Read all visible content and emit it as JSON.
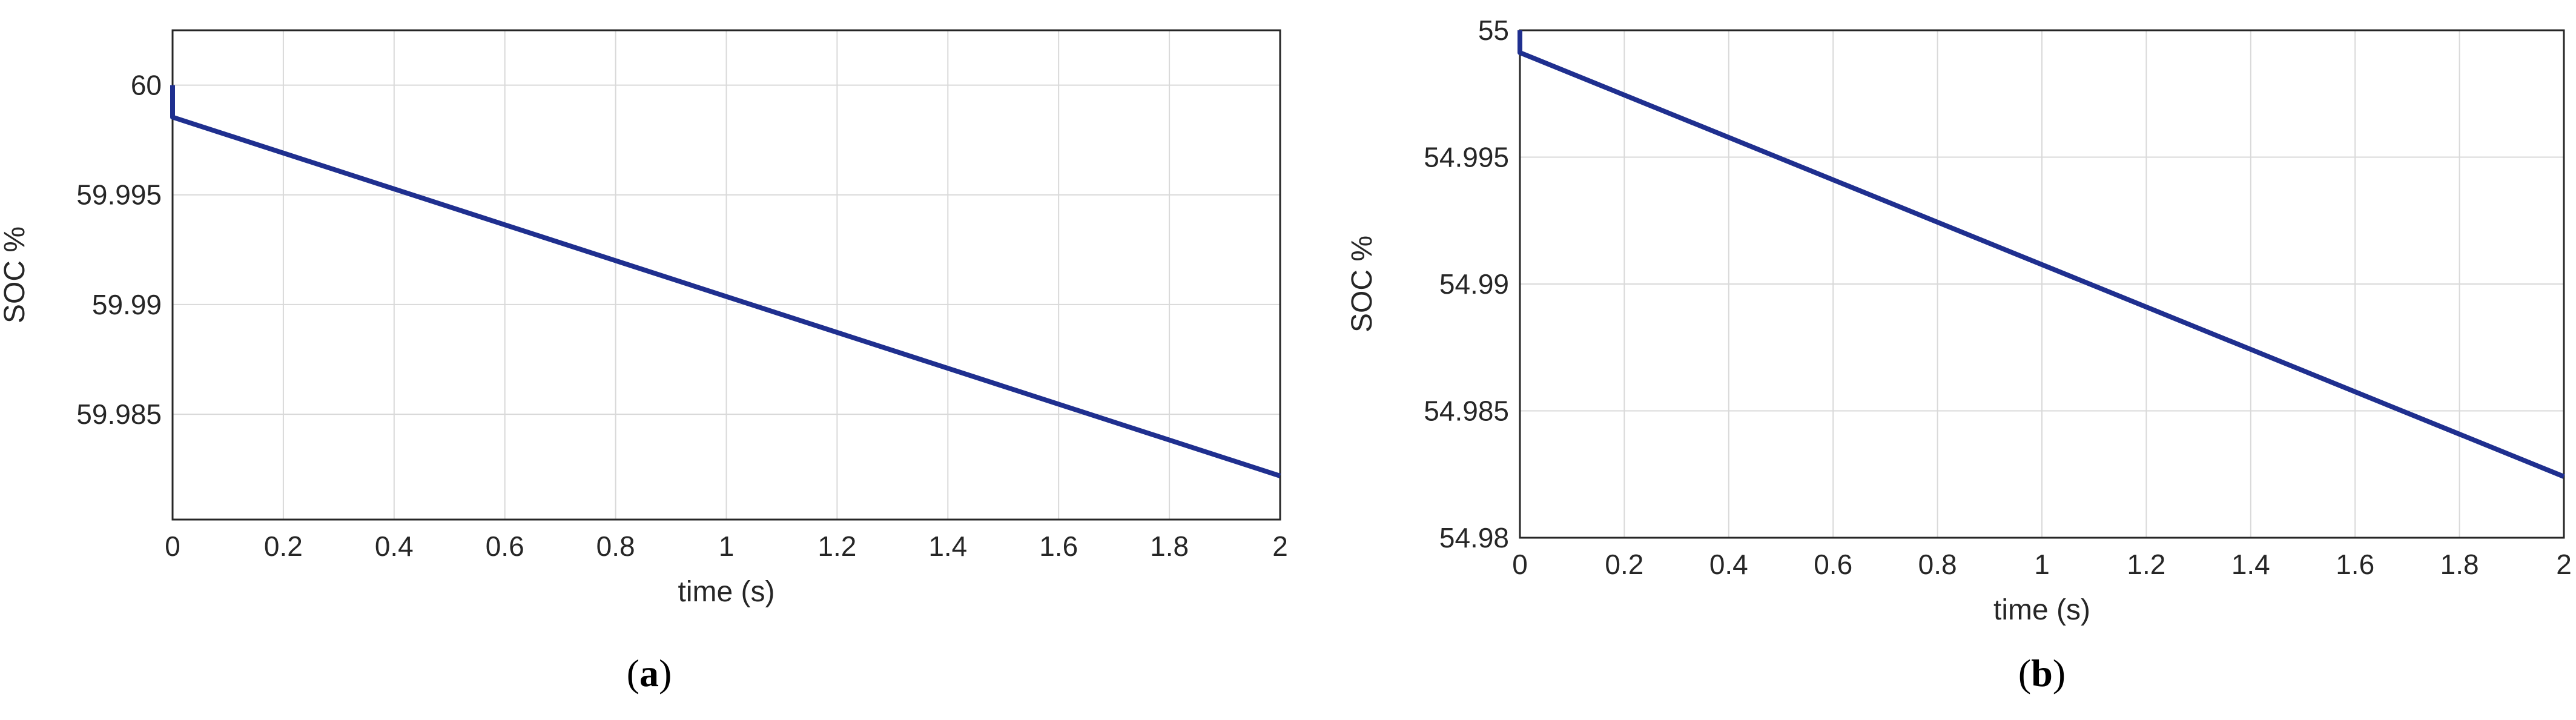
{
  "chart_data": [
    {
      "type": "line",
      "panel_label": "a",
      "title": "",
      "xlabel": "time (s)",
      "ylabel": "SOC %",
      "xlim": [
        0,
        2
      ],
      "ylim": [
        59.9802,
        60.0025
      ],
      "xticks": [
        "0",
        "0.2",
        "0.4",
        "0.6",
        "0.8",
        "1",
        "1.2",
        "1.4",
        "1.6",
        "1.8",
        "2"
      ],
      "yticks": [
        "59.985",
        "59.99",
        "59.995",
        "60"
      ],
      "grid": true,
      "line_color": "#1f2f8f",
      "series": [
        {
          "x": [
            0,
            0,
            2
          ],
          "y": [
            60.0,
            59.99854,
            59.98219
          ]
        }
      ]
    },
    {
      "type": "line",
      "panel_label": "b",
      "title": "",
      "xlabel": "time (s)",
      "ylabel": "SOC %",
      "xlim": [
        0,
        2
      ],
      "ylim": [
        54.98,
        55.0
      ],
      "xticks": [
        "0",
        "0.2",
        "0.4",
        "0.6",
        "0.8",
        "1",
        "1.2",
        "1.4",
        "1.6",
        "1.8",
        "2"
      ],
      "yticks": [
        "54.98",
        "54.985",
        "54.99",
        "54.995",
        "55"
      ],
      "grid": true,
      "line_color": "#1f2f8f",
      "series": [
        {
          "x": [
            0,
            0,
            2
          ],
          "y": [
            55.0,
            54.99912,
            54.98241
          ]
        }
      ]
    }
  ]
}
